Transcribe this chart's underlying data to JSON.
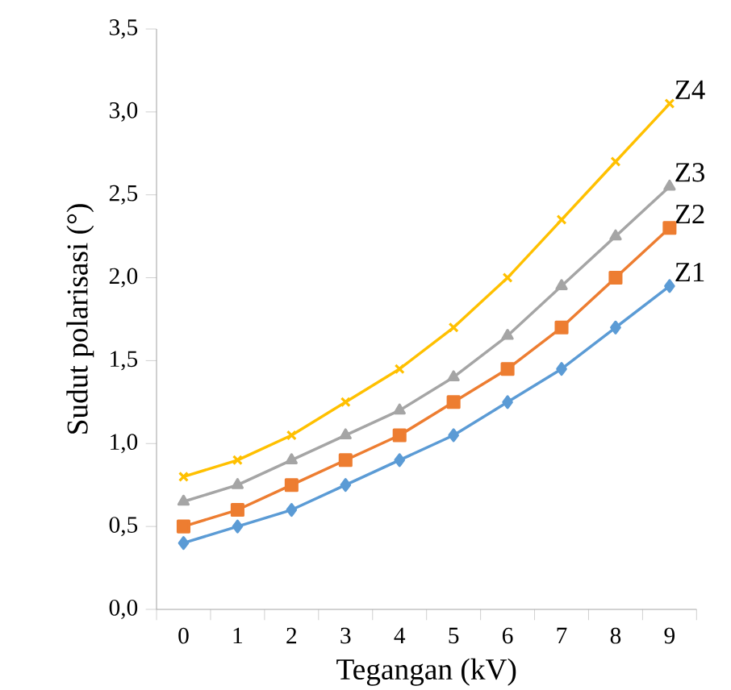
{
  "chart_data": {
    "type": "line",
    "xlabel": "Tegangan (kV)",
    "ylabel": "Sudut polarisasi (°)",
    "categories": [
      "0",
      "1",
      "2",
      "3",
      "4",
      "5",
      "6",
      "7",
      "8",
      "9"
    ],
    "ylim": [
      0,
      3.5
    ],
    "yticks": [
      {
        "value": 0,
        "label": "0,0"
      },
      {
        "value": 0.5,
        "label": "0,5"
      },
      {
        "value": 1,
        "label": "1,0"
      },
      {
        "value": 1.5,
        "label": "1,5"
      },
      {
        "value": 2,
        "label": "2,0"
      },
      {
        "value": 2.5,
        "label": "2,5"
      },
      {
        "value": 3,
        "label": "3,0"
      },
      {
        "value": 3.5,
        "label": "3,5"
      }
    ],
    "grid": false,
    "series": [
      {
        "name": "Z1",
        "color": "#5b9bd5",
        "marker": "diamond",
        "values": [
          0.4,
          0.5,
          0.6,
          0.75,
          0.9,
          1.05,
          1.25,
          1.45,
          1.7,
          1.95
        ]
      },
      {
        "name": "Z2",
        "color": "#ed7d31",
        "marker": "square",
        "values": [
          0.5,
          0.6,
          0.75,
          0.9,
          1.05,
          1.25,
          1.45,
          1.7,
          2.0,
          2.3
        ]
      },
      {
        "name": "Z3",
        "color": "#a5a5a5",
        "marker": "triangle",
        "values": [
          0.65,
          0.75,
          0.9,
          1.05,
          1.2,
          1.4,
          1.65,
          1.95,
          2.25,
          2.55
        ]
      },
      {
        "name": "Z4",
        "color": "#ffc000",
        "marker": "cross",
        "values": [
          0.8,
          0.9,
          1.05,
          1.25,
          1.45,
          1.7,
          2.0,
          2.35,
          2.7,
          3.05
        ]
      }
    ]
  }
}
